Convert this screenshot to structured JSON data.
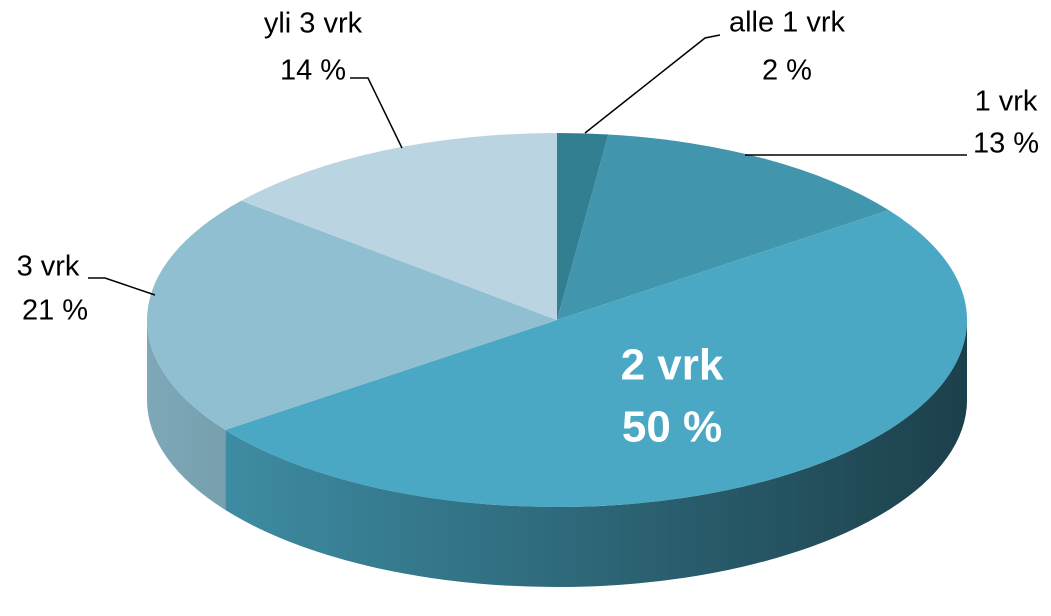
{
  "chart_data": {
    "type": "pie",
    "categories": [
      "alle 1 vrk",
      "1 vrk",
      "2 vrk",
      "3 vrk",
      "yli 3 vrk"
    ],
    "values": [
      2,
      13,
      50,
      21,
      14
    ],
    "value_labels": [
      "2 %",
      "13 %",
      "50 %",
      "21 %",
      "14 %"
    ],
    "colors": [
      "#337f92",
      "#4196ae",
      "#4aa8c4",
      "#8fbfd1",
      "#bad5e1"
    ]
  }
}
